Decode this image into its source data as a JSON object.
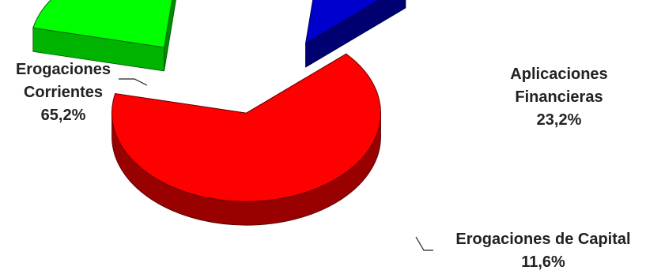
{
  "chart_data": {
    "type": "pie",
    "style": "3d-exploded",
    "slices": [
      {
        "label_lines": [
          "Erogaciones",
          "Corrientes"
        ],
        "value_text": "65,2%",
        "value": 65.2,
        "color": "#ff0000"
      },
      {
        "label_lines": [
          "Aplicaciones",
          "Financieras"
        ],
        "value_text": "23,2%",
        "value": 23.2,
        "color": "#00ff00"
      },
      {
        "label_lines": [
          "Erogaciones de Capital"
        ],
        "value_text": "11,6%",
        "value": 11.6,
        "color": "#0000cc"
      }
    ]
  }
}
